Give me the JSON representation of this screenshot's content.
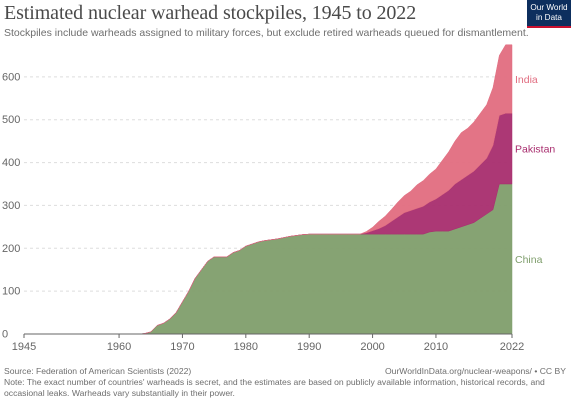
{
  "header": {
    "title": "Estimated nuclear warhead stockpiles, 1945 to 2022",
    "subtitle": "Stockpiles include warheads assigned to military forces, but exclude retired warheads queued for dismantlement.",
    "logo_line1": "Our World",
    "logo_line2": "in Data"
  },
  "footer": {
    "source": "Source: Federation of American Scientists (2022)",
    "license": "OurWorldInData.org/nuclear-weapons/ • CC BY",
    "note": "Note: The exact number of countries' warheads is secret, and the estimates are based on publicly available information, historical records, and occasional leaks. Warheads vary substantially in their power."
  },
  "colors": {
    "China": "#7f9e6c",
    "Pakistan": "#a82d6e",
    "India": "#e16d80",
    "grid": "#dddddd",
    "axis": "#666666"
  },
  "chart_data": {
    "type": "area",
    "stacked": true,
    "title": "Estimated nuclear warhead stockpiles, 1945 to 2022",
    "xlabel": "",
    "ylabel": "",
    "xlim": [
      1945,
      2022
    ],
    "ylim": [
      0,
      700
    ],
    "x_ticks": [
      "1945",
      "1960",
      "1970",
      "1980",
      "1990",
      "2000",
      "2010",
      "2022"
    ],
    "y_ticks": [
      "0",
      "100",
      "200",
      "300",
      "400",
      "500",
      "600"
    ],
    "grid": true,
    "legend": "right-inline",
    "x": [
      1945,
      1963,
      1964,
      1965,
      1966,
      1967,
      1968,
      1969,
      1970,
      1971,
      1972,
      1973,
      1974,
      1975,
      1976,
      1977,
      1978,
      1979,
      1980,
      1981,
      1982,
      1983,
      1984,
      1985,
      1986,
      1987,
      1988,
      1989,
      1990,
      1991,
      1992,
      1993,
      1994,
      1995,
      1996,
      1997,
      1998,
      1999,
      2000,
      2001,
      2002,
      2003,
      2004,
      2005,
      2006,
      2007,
      2008,
      2009,
      2010,
      2011,
      2012,
      2013,
      2014,
      2015,
      2016,
      2017,
      2018,
      2019,
      2020,
      2021,
      2022
    ],
    "series": [
      {
        "name": "China",
        "values": [
          0,
          0,
          1,
          5,
          20,
          25,
          35,
          50,
          75,
          100,
          130,
          150,
          170,
          180,
          180,
          180,
          190,
          195,
          205,
          210,
          215,
          218,
          220,
          222,
          225,
          228,
          230,
          232,
          233,
          233,
          233,
          233,
          233,
          233,
          233,
          233,
          233,
          233,
          233,
          233,
          233,
          233,
          233,
          233,
          233,
          233,
          233,
          238,
          240,
          240,
          240,
          245,
          250,
          255,
          260,
          270,
          280,
          290,
          350,
          350,
          350
        ]
      },
      {
        "name": "Pakistan",
        "values": [
          0,
          0,
          0,
          0,
          0,
          0,
          0,
          0,
          0,
          0,
          0,
          0,
          0,
          0,
          0,
          0,
          0,
          0,
          0,
          0,
          0,
          0,
          0,
          0,
          0,
          0,
          0,
          0,
          0,
          0,
          0,
          0,
          0,
          0,
          0,
          0,
          0,
          3,
          8,
          13,
          20,
          30,
          40,
          50,
          55,
          60,
          65,
          70,
          75,
          85,
          95,
          105,
          110,
          115,
          120,
          125,
          130,
          150,
          160,
          165,
          165
        ]
      },
      {
        "name": "India",
        "values": [
          0,
          0,
          0,
          0,
          0,
          0,
          0,
          0,
          0,
          0,
          0,
          0,
          0,
          0,
          0,
          0,
          0,
          0,
          0,
          0,
          0,
          0,
          0,
          0,
          0,
          0,
          0,
          0,
          0,
          0,
          0,
          0,
          0,
          0,
          0,
          0,
          0,
          3,
          8,
          17,
          22,
          28,
          35,
          40,
          45,
          55,
          60,
          65,
          70,
          80,
          90,
          100,
          110,
          110,
          115,
          120,
          125,
          135,
          140,
          160,
          160
        ]
      }
    ]
  }
}
